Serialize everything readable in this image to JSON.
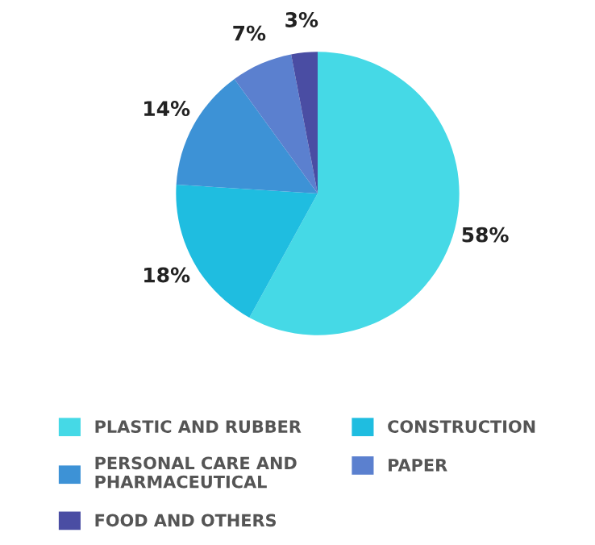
{
  "chart_data": {
    "type": "pie",
    "categories": [
      "PLASTIC AND RUBBER",
      "CONSTRUCTION",
      "PERSONAL CARE AND PHARMACEUTICAL",
      "PAPER",
      "FOOD AND OTHERS"
    ],
    "values": [
      58,
      18,
      14,
      7,
      3
    ],
    "colors": [
      "#45d9e6",
      "#1fbde0",
      "#3d92d6",
      "#5b80cf",
      "#4a4da3"
    ],
    "value_labels": [
      "58%",
      "18%",
      "14%",
      "7%",
      "3%"
    ],
    "legend": "bottom"
  }
}
